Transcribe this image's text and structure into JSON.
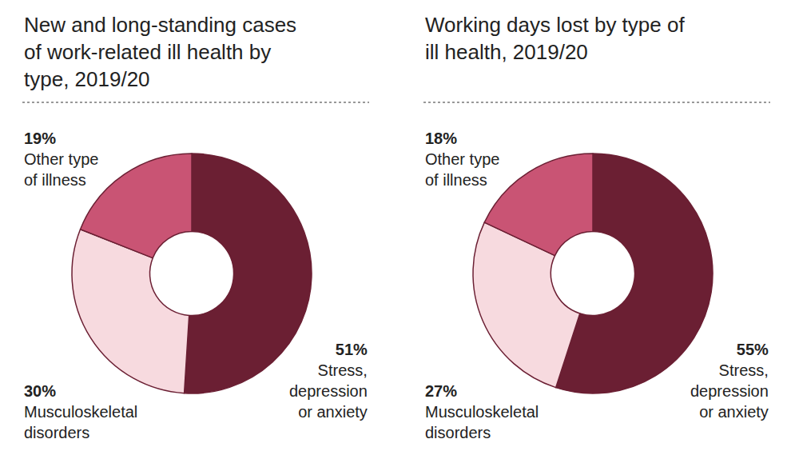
{
  "chart_data": [
    {
      "type": "pie",
      "title": "New and long-standing cases of work-related ill health by type, 2019/20",
      "categories": [
        "Stress, depression or anxiety",
        "Musculoskeletal disorders",
        "Other type of illness"
      ],
      "values": [
        51,
        30,
        19
      ],
      "value_labels": [
        "51%",
        "30%",
        "19%"
      ],
      "colors": [
        "#6b1f33",
        "#f7dadf",
        "#c95474"
      ],
      "data_labels": true
    },
    {
      "type": "pie",
      "title": "Working days lost by type of ill health, 2019/20",
      "categories": [
        "Stress, depression or anxiety",
        "Musculoskeletal disorders",
        "Other type of illness"
      ],
      "values": [
        55,
        27,
        18
      ],
      "value_labels": [
        "55%",
        "27%",
        "18%"
      ],
      "colors": [
        "#6b1f33",
        "#f7dadf",
        "#c95474"
      ],
      "data_labels": true
    }
  ]
}
